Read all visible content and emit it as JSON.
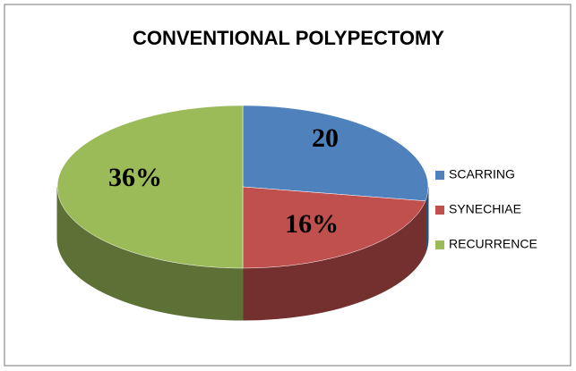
{
  "chart_data": {
    "type": "pie3d",
    "title": "CONVENTIONAL POLYPECTOMY",
    "categories": [
      "SCARRING",
      "SYNECHIAE",
      "RECURRENCE"
    ],
    "values": [
      20,
      16,
      36
    ],
    "value_labels": [
      "20",
      "16%",
      "36%"
    ],
    "colors": [
      "#4f81bd",
      "#c0504d",
      "#9bbb59"
    ],
    "legend": "right"
  }
}
